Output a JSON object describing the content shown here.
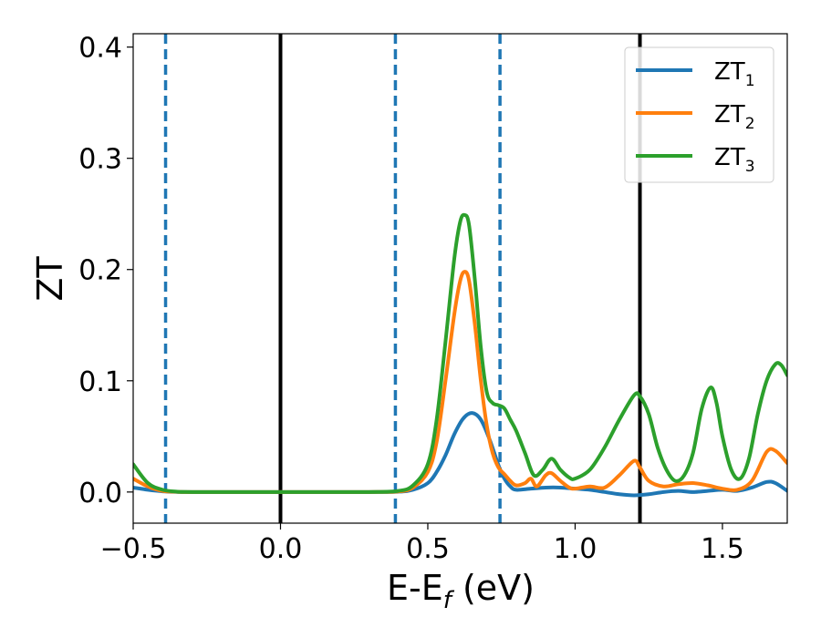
{
  "chart_data": {
    "type": "line",
    "xlabel": "E-E",
    "xlabel_sub": "f",
    "xlabel_tail": " (eV)",
    "ylabel": "ZT",
    "xlim": [
      -0.5,
      1.72
    ],
    "ylim": [
      -0.028,
      0.412
    ],
    "x_ticks": [
      -0.5,
      0.0,
      0.5,
      1.0,
      1.5
    ],
    "x_tick_labels": [
      "−0.5",
      "0.0",
      "0.5",
      "1.0",
      "1.5"
    ],
    "y_ticks": [
      0.0,
      0.1,
      0.2,
      0.3,
      0.4
    ],
    "y_tick_labels": [
      "0.0",
      "0.1",
      "0.2",
      "0.3",
      "0.4"
    ],
    "grid": false,
    "legend_position": "top-right",
    "vlines_solid": [
      0.0,
      1.22
    ],
    "vlines_dashed": [
      -0.39,
      0.39,
      0.745
    ],
    "vline_solid_color": "#000000",
    "vline_dashed_color": "#1f77b4",
    "series": [
      {
        "name": "ZT",
        "name_sub": "1",
        "color": "#1f77b4",
        "x": [
          -0.5,
          -0.45,
          -0.4,
          -0.35,
          -0.3,
          0.0,
          0.3,
          0.4,
          0.45,
          0.5,
          0.53,
          0.56,
          0.59,
          0.62,
          0.65,
          0.68,
          0.71,
          0.74,
          0.76,
          0.78,
          0.8,
          0.85,
          0.9,
          0.95,
          1.0,
          1.05,
          1.1,
          1.15,
          1.2,
          1.25,
          1.3,
          1.35,
          1.4,
          1.45,
          1.5,
          1.55,
          1.6,
          1.65,
          1.68,
          1.72
        ],
        "y": [
          0.004,
          0.002,
          0.0006,
          0.0001,
          0.0,
          0.0,
          0.0,
          0.0003,
          0.002,
          0.008,
          0.018,
          0.033,
          0.052,
          0.066,
          0.071,
          0.065,
          0.047,
          0.024,
          0.012,
          0.005,
          0.002,
          0.003,
          0.004,
          0.004,
          0.003,
          0.002,
          0.0,
          -0.002,
          -0.003,
          -0.002,
          0.0,
          0.001,
          0.0,
          0.001,
          0.002,
          0.001,
          0.004,
          0.009,
          0.008,
          0.001
        ]
      },
      {
        "name": "ZT",
        "name_sub": "2",
        "color": "#ff7f0e",
        "x": [
          -0.5,
          -0.45,
          -0.4,
          -0.35,
          -0.3,
          0.0,
          0.3,
          0.4,
          0.45,
          0.5,
          0.53,
          0.56,
          0.59,
          0.61,
          0.625,
          0.64,
          0.66,
          0.68,
          0.7,
          0.72,
          0.74,
          0.76,
          0.78,
          0.8,
          0.83,
          0.85,
          0.87,
          0.9,
          0.92,
          0.95,
          0.98,
          1.0,
          1.05,
          1.1,
          1.15,
          1.2,
          1.22,
          1.25,
          1.3,
          1.35,
          1.4,
          1.45,
          1.5,
          1.55,
          1.6,
          1.65,
          1.68,
          1.72
        ],
        "y": [
          0.012,
          0.005,
          0.001,
          0.0002,
          0.0,
          0.0,
          0.0,
          0.0005,
          0.004,
          0.018,
          0.045,
          0.1,
          0.16,
          0.19,
          0.198,
          0.19,
          0.15,
          0.1,
          0.06,
          0.035,
          0.022,
          0.016,
          0.01,
          0.006,
          0.008,
          0.012,
          0.005,
          0.015,
          0.017,
          0.01,
          0.004,
          0.003,
          0.005,
          0.004,
          0.015,
          0.028,
          0.022,
          0.01,
          0.005,
          0.007,
          0.008,
          0.006,
          0.003,
          0.002,
          0.01,
          0.036,
          0.037,
          0.026
        ]
      },
      {
        "name": "ZT",
        "name_sub": "3",
        "color": "#2ca02c",
        "x": [
          -0.5,
          -0.45,
          -0.4,
          -0.35,
          -0.3,
          0.0,
          0.3,
          0.4,
          0.45,
          0.5,
          0.53,
          0.56,
          0.59,
          0.61,
          0.625,
          0.64,
          0.66,
          0.68,
          0.7,
          0.72,
          0.74,
          0.76,
          0.78,
          0.8,
          0.83,
          0.86,
          0.89,
          0.92,
          0.95,
          0.98,
          1.0,
          1.05,
          1.1,
          1.15,
          1.2,
          1.22,
          1.25,
          1.28,
          1.31,
          1.34,
          1.37,
          1.4,
          1.43,
          1.46,
          1.48,
          1.5,
          1.53,
          1.56,
          1.59,
          1.62,
          1.65,
          1.68,
          1.7,
          1.72
        ],
        "y": [
          0.025,
          0.008,
          0.002,
          0.0003,
          0.0,
          0.0,
          0.0,
          0.001,
          0.006,
          0.025,
          0.065,
          0.135,
          0.21,
          0.243,
          0.249,
          0.24,
          0.19,
          0.13,
          0.09,
          0.08,
          0.078,
          0.075,
          0.065,
          0.055,
          0.035,
          0.015,
          0.02,
          0.03,
          0.02,
          0.013,
          0.012,
          0.02,
          0.04,
          0.065,
          0.087,
          0.086,
          0.07,
          0.04,
          0.02,
          0.01,
          0.015,
          0.035,
          0.075,
          0.094,
          0.08,
          0.05,
          0.02,
          0.012,
          0.03,
          0.07,
          0.1,
          0.115,
          0.114,
          0.105
        ]
      }
    ]
  }
}
